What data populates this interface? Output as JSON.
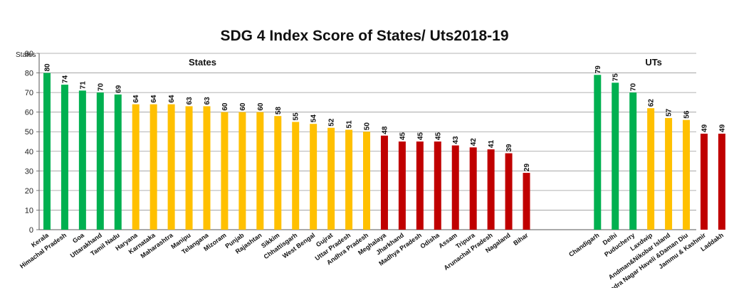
{
  "chart_data": {
    "type": "bar",
    "title": "SDG 4 Index Score of States/ Uts2018-19",
    "ylabel": "States",
    "ylim": [
      0,
      90
    ],
    "yticks": [
      0,
      10,
      20,
      30,
      40,
      50,
      60,
      70,
      80,
      90
    ],
    "grid": true,
    "legend": "none",
    "colors": {
      "green": "#00b050",
      "yellow": "#ffc000",
      "red": "#c00000"
    },
    "groups": [
      {
        "label": "States",
        "categories": [
          "Kerala",
          "Himachal Pradesh",
          "Goa",
          "Uttarakhand",
          "Tamil Nadu",
          "Haryana",
          "Karnataka",
          "Maharashtra",
          "Manipu",
          "Telangana",
          "Mizoram",
          "Punjab",
          "Rajashtan",
          "Sikkim",
          "Chhattisgarh",
          "West Bengal",
          "Gujrat",
          "Uttar Pradesh",
          "Andhra Pradesh",
          "Meghalaya",
          "Jharkhand",
          "Madhya Pradesh",
          "Odisha",
          "Assam",
          "Tripura",
          "Arunachal Pradesh",
          "Nagaland",
          "Bihar"
        ],
        "values": [
          80,
          74,
          71,
          70,
          69,
          64,
          64,
          64,
          63,
          63,
          60,
          60,
          60,
          58,
          55,
          54,
          52,
          51,
          50,
          48,
          45,
          45,
          45,
          43,
          42,
          41,
          39,
          29
        ],
        "bar_colors": [
          "green",
          "green",
          "green",
          "green",
          "green",
          "yellow",
          "yellow",
          "yellow",
          "yellow",
          "yellow",
          "yellow",
          "yellow",
          "yellow",
          "yellow",
          "yellow",
          "yellow",
          "yellow",
          "yellow",
          "yellow",
          "red",
          "red",
          "red",
          "red",
          "red",
          "red",
          "red",
          "red",
          "red"
        ]
      },
      {
        "label": "UTs",
        "categories": [
          "Chandigarh",
          "Delhi",
          "Puducherry",
          "Laxdwip",
          "Andman&Nikobar Island",
          "Dadra Nagar Haveli &Daman Diu",
          "Jammu & Kashmir",
          "Laddakh"
        ],
        "values": [
          79,
          75,
          70,
          62,
          57,
          56,
          49,
          49
        ],
        "bar_colors": [
          "green",
          "green",
          "green",
          "yellow",
          "yellow",
          "yellow",
          "red",
          "red"
        ]
      }
    ]
  }
}
